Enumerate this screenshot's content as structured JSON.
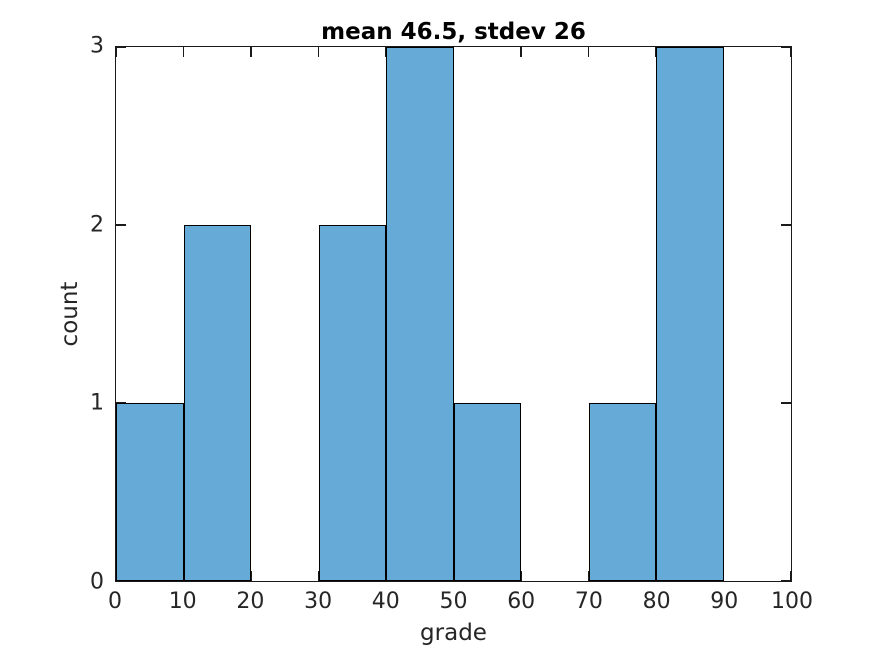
{
  "chart_data": {
    "type": "bar",
    "subtype": "histogram",
    "title": "mean 46.5, stdev 26",
    "xlabel": "grade",
    "ylabel": "count",
    "bin_edges": [
      0,
      10,
      20,
      30,
      40,
      50,
      60,
      70,
      80,
      90,
      100
    ],
    "values": [
      1,
      2,
      0,
      2,
      3,
      1,
      0,
      1,
      3,
      0
    ],
    "xlim": [
      0,
      100
    ],
    "ylim": [
      0,
      3
    ],
    "xticks": [
      0,
      10,
      20,
      30,
      40,
      50,
      60,
      70,
      80,
      90,
      100
    ],
    "yticks": [
      0,
      1,
      2,
      3
    ],
    "grid": false,
    "legend_position": "none",
    "tick_style": "inward-mirrored",
    "colors": {
      "bar_fill": "#66AAD7",
      "bar_edge": "#000000",
      "axis": "#1A1A1A",
      "tick_text": "#262626",
      "title_text": "#000000",
      "background": "#FFFFFF"
    }
  }
}
